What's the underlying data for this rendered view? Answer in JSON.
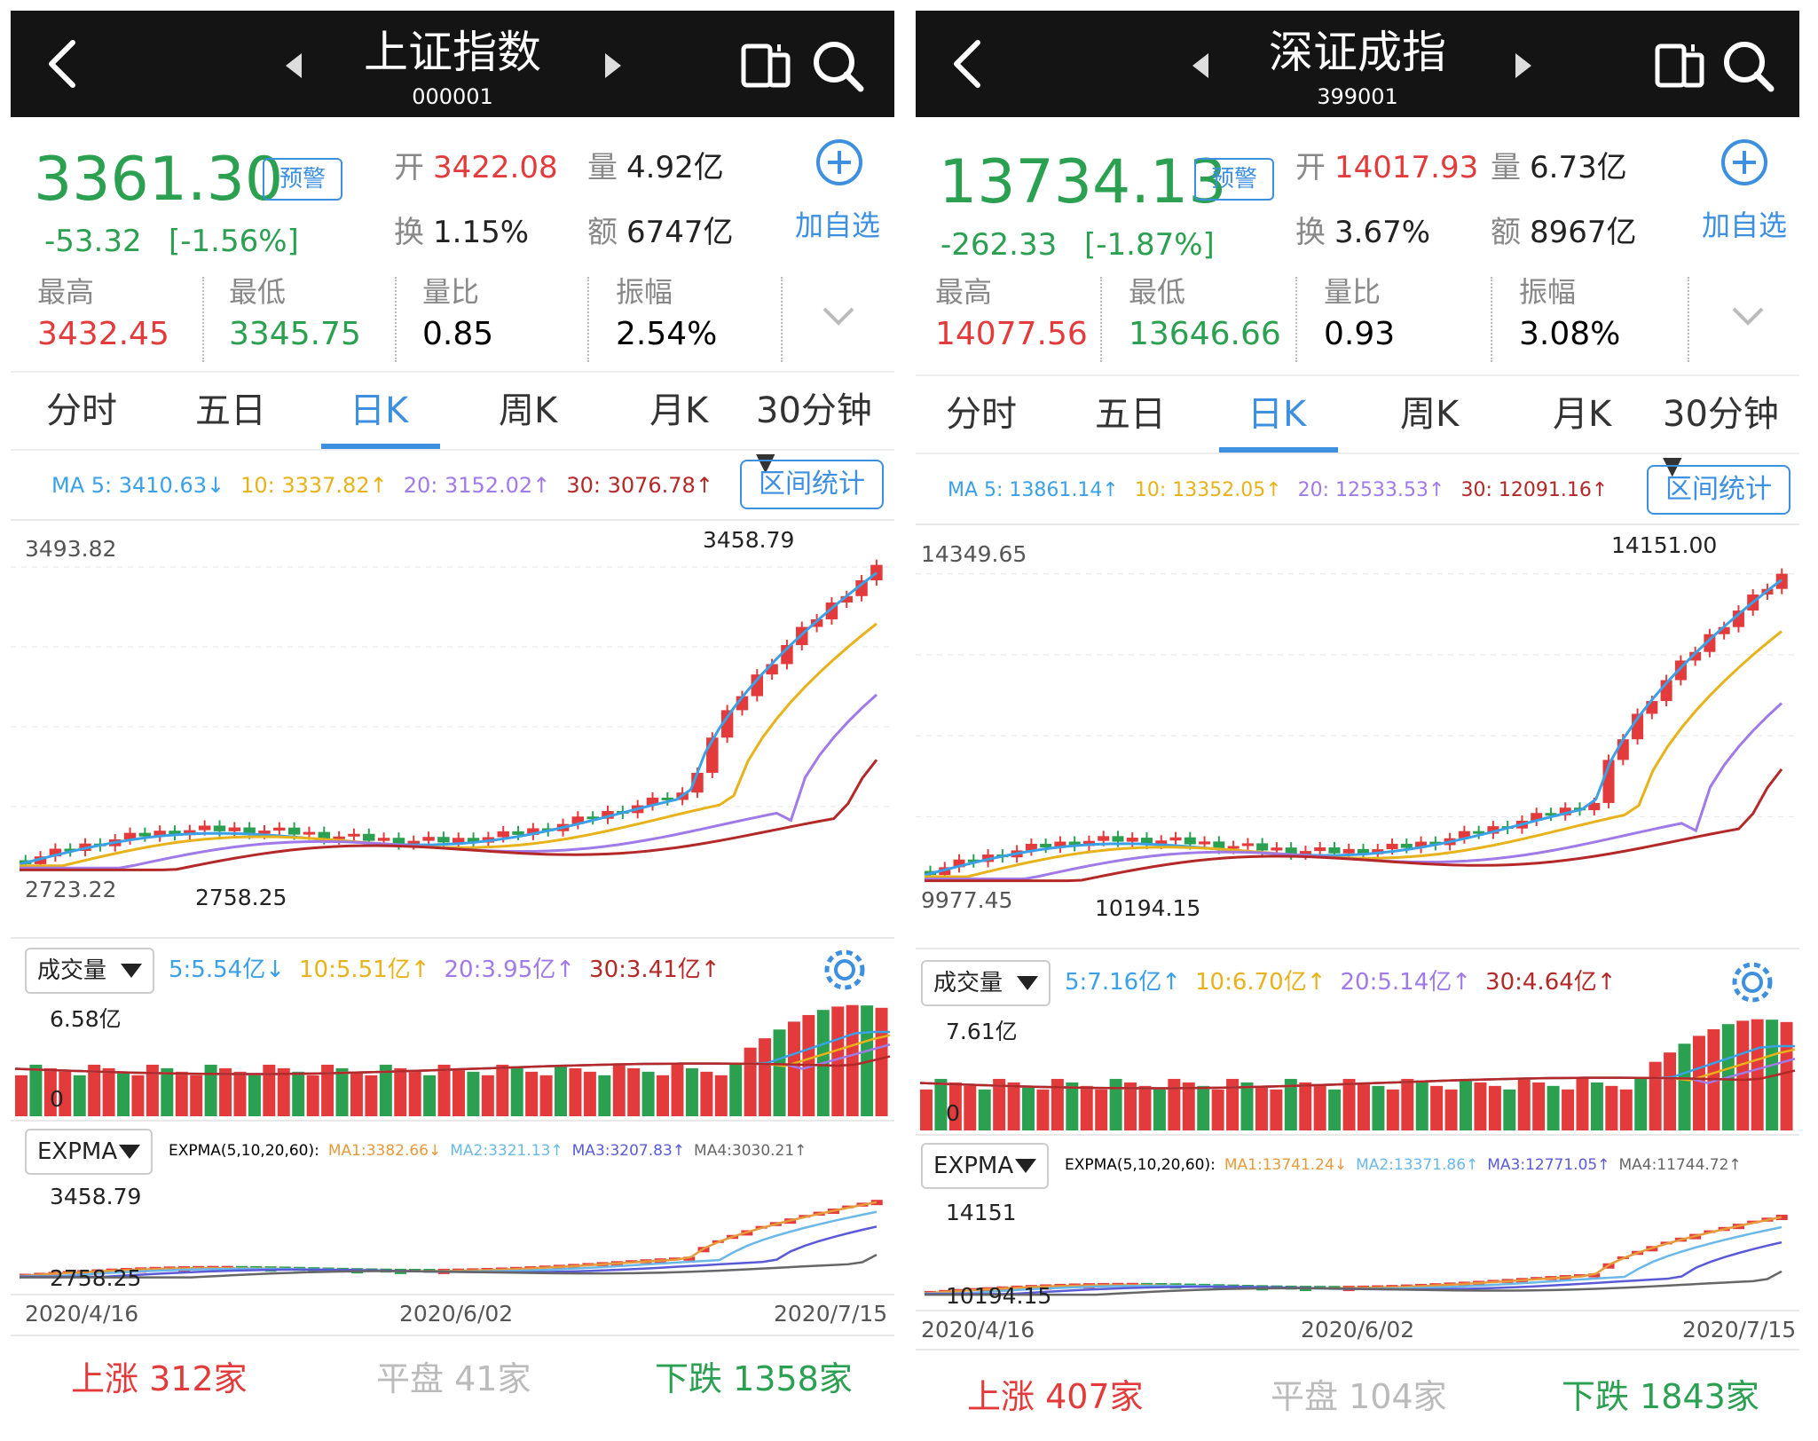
{
  "panels": [
    {
      "title": "上证指数",
      "code": "000001",
      "price": "3361.30",
      "warn_label": "预警",
      "change": "-53.32",
      "change_pct": "[-1.56%]",
      "open_label": "开",
      "open": "3422.08",
      "vol_label": "量",
      "vol": "4.92亿",
      "turnover_label": "换",
      "turnover": "1.15%",
      "amount_label": "额",
      "amount": "6747亿",
      "add_label": "加自选",
      "high_label": "最高",
      "high": "3432.45",
      "low_label": "最低",
      "low": "3345.75",
      "ratio_label": "量比",
      "ratio": "0.85",
      "amp_label": "振幅",
      "amp": "2.54%",
      "tabs": [
        "分时",
        "五日",
        "日K",
        "周K",
        "月K",
        "30分钟"
      ],
      "active_tab": "日K",
      "ma": {
        "ma5": "MA 5: 3410.63↓",
        "ma10": "10: 3337.82↑",
        "ma20": "20: 3152.02↑",
        "ma30": "30: 3076.78↑"
      },
      "stat_button": "区间统计",
      "chart_top": "3493.82",
      "chart_peak": "3458.79",
      "chart_bottom": "2723.22",
      "chart_low": "2758.25",
      "vol_select": "成交量",
      "vol_ma": {
        "v5": "5:5.54亿↓",
        "v10": "10:5.51亿↑",
        "v20": "20:3.95亿↑",
        "v30": "30:3.41亿↑"
      },
      "vol_max": "6.58亿",
      "vol_zero": "0",
      "ema_select": "EXPMA",
      "ema": {
        "label": "EXPMA(5,10,20,60):",
        "m1": "MA1:3382.66↓",
        "m2": "MA2:3321.13↑",
        "m3": "MA3:3207.83↑",
        "m4": "MA4:3030.21↑"
      },
      "ema_top": "3458.79",
      "ema_low": "2758.25",
      "dates": [
        "2020/4/16",
        "2020/6/02",
        "2020/7/15"
      ],
      "up_label": "上涨",
      "up": "312家",
      "flat_label": "平盘",
      "flat": "41家",
      "down_label": "下跌",
      "down": "1358家"
    },
    {
      "title": "深证成指",
      "code": "399001",
      "price": "13734.13",
      "warn_label": "预警",
      "change": "-262.33",
      "change_pct": "[-1.87%]",
      "open_label": "开",
      "open": "14017.93",
      "vol_label": "量",
      "vol": "6.73亿",
      "turnover_label": "换",
      "turnover": "3.67%",
      "amount_label": "额",
      "amount": "8967亿",
      "add_label": "加自选",
      "high_label": "最高",
      "high": "14077.56",
      "low_label": "最低",
      "low": "13646.66",
      "ratio_label": "量比",
      "ratio": "0.93",
      "amp_label": "振幅",
      "amp": "3.08%",
      "tabs": [
        "分时",
        "五日",
        "日K",
        "周K",
        "月K",
        "30分钟"
      ],
      "active_tab": "日K",
      "ma": {
        "ma5": "MA 5: 13861.14↑",
        "ma10": "10: 13352.05↑",
        "ma20": "20: 12533.53↑",
        "ma30": "30: 12091.16↑"
      },
      "stat_button": "区间统计",
      "chart_top": "14349.65",
      "chart_peak": "14151.00",
      "chart_bottom": "9977.45",
      "chart_low": "10194.15",
      "vol_select": "成交量",
      "vol_ma": {
        "v5": "5:7.16亿↑",
        "v10": "10:6.70亿↑",
        "v20": "20:5.14亿↑",
        "v30": "30:4.64亿↑"
      },
      "vol_max": "7.61亿",
      "vol_zero": "0",
      "ema_select": "EXPMA",
      "ema": {
        "label": "EXPMA(5,10,20,60):",
        "m1": "MA1:13741.24↓",
        "m2": "MA2:13371.86↑",
        "m3": "MA3:12771.05↑",
        "m4": "MA4:11744.72↑"
      },
      "ema_top": "14151",
      "ema_low": "10194.15",
      "dates": [
        "2020/4/16",
        "2020/6/02",
        "2020/7/15"
      ],
      "up_label": "上涨",
      "up": "407家",
      "flat_label": "平盘",
      "flat": "104家",
      "down_label": "下跌",
      "down": "1843家"
    }
  ],
  "colors": {
    "up": "#e33b3b",
    "down": "#2aa050",
    "accent": "#3d8fe0",
    "header": "#141414"
  },
  "icons": [
    "back-icon",
    "prev-arrow-icon",
    "next-arrow-icon",
    "phone-flip-icon",
    "search-icon",
    "add-icon",
    "chevron-down-icon",
    "gear-icon"
  ]
}
